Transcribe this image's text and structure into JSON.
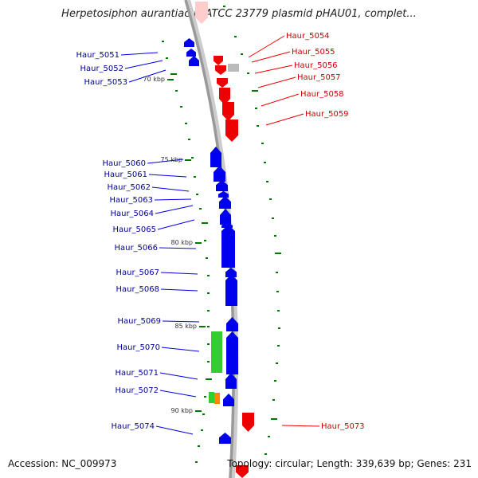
{
  "title": "Herpetosiphon aurantiacus ATCC 23779 plasmid pHAU01, complet...",
  "footer": {
    "accession": "Accession: NC_009973",
    "summary": "Topology: circular; Length: 339,639 bp; Genes: 231"
  },
  "colors": {
    "forward": "#0000ee",
    "reverse": "#ee0000",
    "rna": "#33cc33",
    "other": "#ff8800",
    "unknown": "#bbbbbb",
    "backbone": "#999999",
    "gc": "#007700"
  },
  "ticks": [
    "70 kbp",
    "75 kbp",
    "80 kbp",
    "85 kbp",
    "90 kbp"
  ],
  "left_labels": [
    "Haur_5051",
    "Haur_5052",
    "Haur_5053",
    "Haur_5060",
    "Haur_5061",
    "Haur_5062",
    "Haur_5063",
    "Haur_5064",
    "Haur_5065",
    "Haur_5066",
    "Haur_5067",
    "Haur_5068",
    "Haur_5069",
    "Haur_5070",
    "Haur_5071",
    "Haur_5072",
    "Haur_5074"
  ],
  "right_labels": [
    "Haur_5054",
    "Haur_5055",
    "Haur_5056",
    "Haur_5057",
    "Haur_5058",
    "Haur_5059",
    "Haur_5073"
  ]
}
